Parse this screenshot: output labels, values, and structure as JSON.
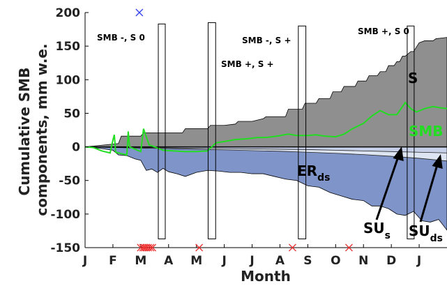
{
  "chart_data": {
    "type": "area",
    "xlabel": "Month",
    "ylabel_lines": [
      "Cumulative SMB",
      "components, mm w.e."
    ],
    "ylim": [
      -150,
      200
    ],
    "xlim": [
      0,
      13
    ],
    "yticks": [
      -150,
      -100,
      -50,
      0,
      50,
      100,
      150,
      200
    ],
    "ytick_labels": [
      "-150",
      "-100",
      "-50",
      "0",
      "50",
      "100",
      "150",
      "200"
    ],
    "xticks": [
      0,
      1,
      2,
      3,
      4,
      5,
      6,
      7,
      8,
      9,
      10,
      11,
      12
    ],
    "xtick_labels": [
      "J",
      "F",
      "M",
      "A",
      "M",
      "J",
      "J",
      "A",
      "S",
      "O",
      "N",
      "D",
      "J"
    ],
    "series": [
      {
        "name": "S",
        "color": "#8f8f8f",
        "x": [
          0,
          0.5,
          1.2,
          1.3,
          2.0,
          2.1,
          2.6,
          3.5,
          3.6,
          4.4,
          4.5,
          5.0,
          5.4,
          5.5,
          6.0,
          6.4,
          6.5,
          7.2,
          7.3,
          7.8,
          7.9,
          8.3,
          8.4,
          8.8,
          8.9,
          9.2,
          9.3,
          9.7,
          9.8,
          10.1,
          10.2,
          10.5,
          10.6,
          10.8,
          10.9,
          11.1,
          11.2,
          11.3,
          11.4,
          11.5,
          11.7,
          11.8,
          12.0,
          12.2,
          12.5,
          12.6,
          13.0
        ],
        "values": [
          0,
          2,
          5,
          16,
          16,
          21,
          21,
          21,
          27,
          27,
          32,
          32,
          34,
          38,
          38,
          42,
          45,
          45,
          56,
          56,
          65,
          65,
          72,
          72,
          82,
          82,
          90,
          90,
          98,
          98,
          106,
          106,
          112,
          112,
          121,
          121,
          127,
          127,
          135,
          135,
          142,
          142,
          155,
          158,
          158,
          161,
          163
        ]
      },
      {
        "name": "SMB",
        "color": "#22dd22",
        "x": [
          0,
          0.3,
          0.6,
          0.9,
          1.0,
          1.05,
          1.1,
          1.2,
          1.5,
          1.55,
          1.6,
          2.0,
          2.1,
          2.3,
          2.5,
          2.8,
          3.2,
          3.6,
          4.0,
          4.4,
          4.7,
          5.0,
          5.4,
          5.8,
          6.2,
          6.5,
          6.9,
          7.3,
          7.6,
          8.0,
          8.3,
          8.6,
          9.0,
          9.3,
          9.6,
          10.0,
          10.3,
          10.6,
          10.9,
          11.2,
          11.5,
          11.7,
          11.9,
          12.2,
          12.5,
          12.8,
          13.0
        ],
        "values": [
          0,
          -1,
          -6,
          -9,
          10,
          18,
          -8,
          -9,
          -12,
          23,
          0,
          -7,
          27,
          3,
          0,
          -5,
          -6,
          -7,
          -7,
          -6,
          6,
          8,
          11,
          12,
          14,
          14,
          16,
          19,
          17,
          17,
          18,
          16,
          15,
          19,
          27,
          35,
          46,
          54,
          48,
          48,
          66,
          57,
          52,
          57,
          60,
          58,
          57
        ]
      },
      {
        "name": "ER_ds",
        "color": "#7f94c8",
        "x": [
          0,
          0.5,
          1.0,
          1.2,
          1.5,
          1.8,
          2.0,
          2.2,
          2.4,
          2.6,
          2.8,
          3.0,
          3.3,
          3.6,
          4.0,
          4.4,
          4.8,
          5.2,
          5.6,
          6.0,
          6.4,
          6.8,
          7.2,
          7.6,
          8.0,
          8.4,
          8.8,
          9.2,
          9.6,
          10.0,
          10.3,
          10.6,
          10.9,
          11.2,
          11.5,
          11.8,
          12.1,
          12.4,
          12.7,
          13.0
        ],
        "values": [
          0,
          -2,
          -5,
          -12,
          -13,
          -18,
          -20,
          -35,
          -33,
          -38,
          -32,
          -37,
          -40,
          -44,
          -38,
          -35,
          -36,
          -38,
          -38,
          -40,
          -40,
          -44,
          -48,
          -50,
          -58,
          -60,
          -68,
          -73,
          -78,
          -80,
          -88,
          -88,
          -92,
          -100,
          -102,
          -96,
          -110,
          -112,
          -108,
          -124
        ]
      },
      {
        "name": "SU_s",
        "color": "#c6d0e8",
        "x": [
          0,
          1,
          2,
          3,
          4,
          5,
          6,
          7,
          8,
          9,
          10,
          11,
          12,
          13
        ],
        "values": [
          0,
          -0.5,
          -1,
          -1.5,
          -2,
          -2.5,
          -3,
          -3.5,
          -4,
          -5,
          -6,
          -7,
          -8,
          -9
        ]
      },
      {
        "name": "SU_ds",
        "color": "#dde4f2",
        "x": [
          0,
          1,
          2,
          3,
          4,
          5,
          6,
          7,
          8,
          9,
          10,
          11,
          12,
          13
        ],
        "values": [
          0,
          -1,
          -1.8,
          -2.5,
          -3.5,
          -4.5,
          -5.5,
          -6.5,
          -8,
          -9.5,
          -11.5,
          -14,
          -17,
          -21
        ]
      }
    ],
    "boxes": [
      {
        "x0": 2.63,
        "x1": 2.88,
        "y0": -137,
        "y1": 183
      },
      {
        "x0": 4.42,
        "x1": 4.69,
        "y0": -137,
        "y1": 185
      },
      {
        "x0": 7.66,
        "x1": 7.93,
        "y0": -137,
        "y1": 180
      },
      {
        "x0": 11.57,
        "x1": 11.82,
        "y0": -137,
        "y1": 180
      }
    ],
    "annotations": {
      "p1": "SMB -, S 0",
      "p2": "SMB +, S +",
      "p3": "SMB -, S +",
      "p4": "SMB +, S 0",
      "s_label": "S",
      "smb_label": "SMB",
      "er_main": "ER",
      "er_sub": "ds",
      "sus_main": "SU",
      "sus_sub": "s",
      "suds_main": "SU",
      "suds_sub": "ds"
    },
    "markers": {
      "blue_cross": {
        "x": 1.95,
        "y": 200,
        "color": "#3344ee"
      },
      "red_crosses": {
        "color": "#ee3333",
        "y": -150,
        "x": [
          2.0,
          2.08,
          2.14,
          2.2,
          2.27,
          2.35,
          2.42,
          4.1,
          7.45,
          9.48
        ]
      }
    }
  }
}
